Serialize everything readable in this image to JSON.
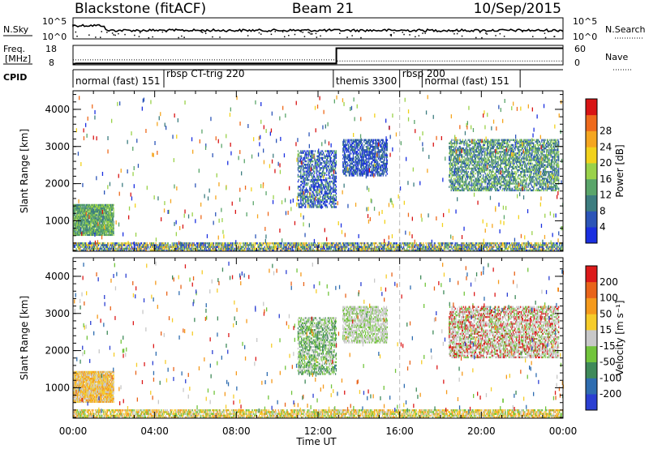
{
  "header": {
    "station": "Blackstone (fitACF)",
    "beam": "Beam 21",
    "date": "10/Sep/2015"
  },
  "noise_panel": {
    "left_label": "N.Sky",
    "right_label": "N.Search",
    "left_ticks": [
      "10^5",
      "10^0"
    ],
    "right_ticks": [
      "10^5",
      "10^0"
    ]
  },
  "freq_panel": {
    "left_label_1": "Freq.",
    "left_label_2": "[MHz]",
    "right_label": "Nave",
    "left_ticks": [
      "18",
      "8"
    ],
    "right_ticks": [
      "60",
      "0"
    ],
    "freq_series": {
      "x_hours": [
        0.0,
        0.15,
        12.9,
        12.9,
        24.0
      ],
      "mhz": [
        9.0,
        10.4,
        10.4,
        18.2,
        18.2
      ]
    },
    "nave_series": {
      "x_hours": [
        0.0,
        12.9,
        12.9,
        24.0
      ],
      "value": [
        14,
        14,
        10,
        10
      ]
    }
  },
  "cpid_panel": {
    "label": "CPID",
    "segments": [
      {
        "text": "normal (fast) 151",
        "start_hour": 0.0
      },
      {
        "text": "rbsp CT-trig 220",
        "start_hour": 4.45
      },
      {
        "text": "themis 3300",
        "start_hour": 12.75
      },
      {
        "text": "rbsp 200",
        "start_hour": 16.0
      },
      {
        "text": "normal (fast) 151",
        "start_hour": 17.1
      }
    ],
    "divider_hours": [
      4.45,
      12.75,
      16.0,
      17.1,
      21.9
    ]
  },
  "chart_data": [
    {
      "type": "heatmap",
      "name": "power",
      "ylabel": "Slant Range [km]",
      "ylim": [
        180,
        4500
      ],
      "yticks": [
        "1000",
        "2000",
        "3000",
        "4000"
      ],
      "colorbar_label": "Power [dB]",
      "colorbar_ticks": [
        "4",
        "8",
        "12",
        "16",
        "20",
        "24",
        "28"
      ],
      "colors": [
        "#1a2fe0",
        "#2c55b8",
        "#3d7d80",
        "#5aa56a",
        "#9ad24a",
        "#f2d21c",
        "#f5a620",
        "#ee6a1c",
        "#d81414"
      ],
      "regions": [
        {
          "x0": 0.0,
          "x1": 2.0,
          "y0": 600,
          "y1": 1450,
          "density": 0.9,
          "levels": [
            2,
            3,
            4
          ]
        },
        {
          "x0": 11.0,
          "x1": 12.9,
          "y0": 1350,
          "y1": 2900,
          "density": 0.5,
          "levels": [
            0,
            1,
            3
          ]
        },
        {
          "x0": 13.2,
          "x1": 15.4,
          "y0": 2200,
          "y1": 3200,
          "density": 0.6,
          "levels": [
            0,
            1,
            2
          ]
        },
        {
          "x0": 18.4,
          "x1": 23.8,
          "y0": 1800,
          "y1": 3200,
          "density": 0.55,
          "levels": [
            1,
            2,
            3,
            4
          ]
        },
        {
          "x0": 0.0,
          "x1": 24.0,
          "y0": 180,
          "y1": 420,
          "density": 0.65,
          "levels": [
            0,
            1,
            2,
            3,
            4,
            5,
            6
          ]
        }
      ]
    },
    {
      "type": "heatmap",
      "name": "velocity",
      "ylabel": "Slant Range [km]",
      "xlabel": "Time UT",
      "ylim": [
        180,
        4500
      ],
      "yticks": [
        "1000",
        "2000",
        "3000",
        "4000"
      ],
      "xticks": [
        "00:00",
        "04:00",
        "08:00",
        "12:00",
        "16:00",
        "20:00",
        "00:00"
      ],
      "xlim_hours": [
        0,
        24
      ],
      "colorbar_label": "Velocity [m s⁻¹]",
      "colorbar_ticks": [
        "200",
        "100",
        "50",
        "15",
        "-15",
        "-50",
        "-100",
        "-200"
      ],
      "colors": [
        "#2b3fd2",
        "#2f6db0",
        "#3f8a5a",
        "#72c43c",
        "#c8c8c8",
        "#f6cc2a",
        "#f59a1c",
        "#e9641a",
        "#dc1a1a"
      ],
      "regions": [
        {
          "x0": 0.0,
          "x1": 2.0,
          "y0": 600,
          "y1": 1450,
          "density": 0.9,
          "levels": [
            5,
            6,
            4
          ]
        },
        {
          "x0": 11.0,
          "x1": 12.9,
          "y0": 1350,
          "y1": 2900,
          "density": 0.5,
          "levels": [
            4,
            3,
            2
          ]
        },
        {
          "x0": 13.2,
          "x1": 15.4,
          "y0": 2200,
          "y1": 3200,
          "density": 0.6,
          "levels": [
            4,
            4,
            3
          ]
        },
        {
          "x0": 18.4,
          "x1": 23.8,
          "y0": 1800,
          "y1": 3200,
          "density": 0.55,
          "levels": [
            4,
            4,
            8,
            3
          ]
        },
        {
          "x0": 0.0,
          "x1": 24.0,
          "y0": 180,
          "y1": 420,
          "density": 0.65,
          "levels": [
            3,
            4,
            5,
            6
          ]
        }
      ]
    }
  ]
}
